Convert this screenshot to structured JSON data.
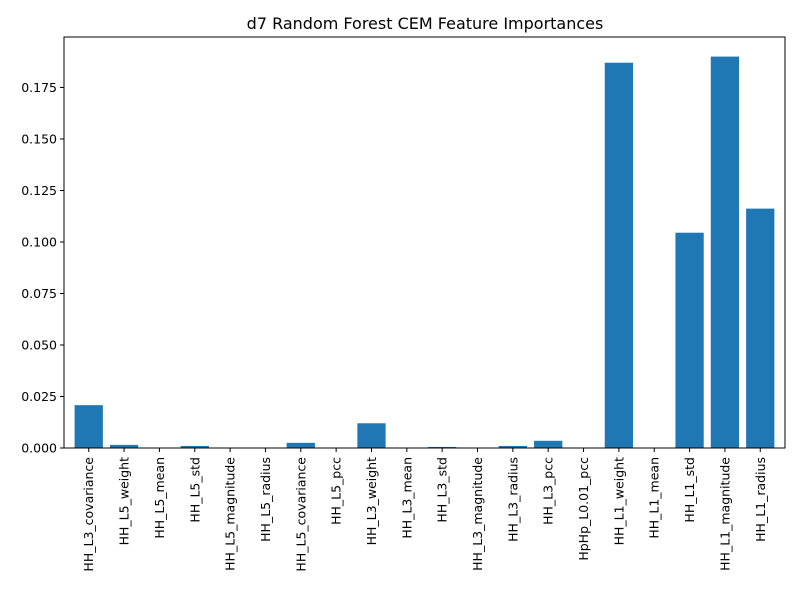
{
  "chart_data": {
    "type": "bar",
    "title": "d7 Random Forest CEM Feature Importances",
    "xlabel": "",
    "ylabel": "",
    "categories": [
      "HH_L3_covariance",
      "HH_L5_weight",
      "HH_L5_mean",
      "HH_L5_std",
      "HH_L5_magnitude",
      "HH_L5_radius",
      "HH_L5_covariance",
      "HH_L5_pcc",
      "HH_L3_weight",
      "HH_L3_mean",
      "HH_L3_std",
      "HH_L3_magnitude",
      "HH_L3_radius",
      "HH_L3_pcc",
      "HpHp_L0.01_pcc",
      "HH_L1_weight",
      "HH_L1_mean",
      "HH_L1_std",
      "HH_L1_magnitude",
      "HH_L1_radius"
    ],
    "values": [
      0.0208,
      0.0015,
      0.0,
      0.001,
      0.0,
      0.0,
      0.0025,
      0.0,
      0.012,
      0.0,
      0.0005,
      0.0,
      0.001,
      0.0035,
      0.0,
      0.187,
      0.0,
      0.1045,
      0.19,
      0.1162
    ],
    "ylim": [
      0,
      0.1995
    ],
    "yticks": [
      "0.000",
      "0.025",
      "0.050",
      "0.075",
      "0.100",
      "0.125",
      "0.150",
      "0.175"
    ],
    "bar_color": "#1f77b4",
    "grid": false,
    "legend": "none"
  }
}
